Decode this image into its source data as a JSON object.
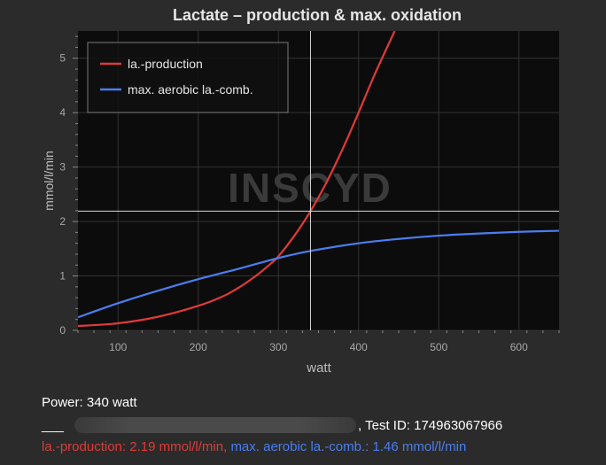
{
  "chart_data": {
    "type": "line",
    "title": "Lactate – production & max. oxidation",
    "xlabel": "watt",
    "ylabel": "mmol/l/min",
    "xlim": [
      50,
      650
    ],
    "ylim": [
      0,
      5.5
    ],
    "x_ticks": [
      100,
      200,
      300,
      400,
      500,
      600
    ],
    "y_ticks": [
      0,
      1,
      2,
      3,
      4,
      5
    ],
    "grid": true,
    "legend": "top-left",
    "watermark": "INSCYD",
    "crosshair": {
      "x": 340,
      "y": 2.19
    },
    "series": [
      {
        "name": "la.-production",
        "color": "#e03a3a",
        "x": [
          50,
          100,
          150,
          200,
          230,
          250,
          270,
          290,
          300,
          320,
          340,
          360,
          380,
          400,
          420,
          445
        ],
        "y": [
          0.08,
          0.13,
          0.25,
          0.45,
          0.62,
          0.78,
          0.98,
          1.22,
          1.36,
          1.74,
          2.19,
          2.72,
          3.33,
          4.0,
          4.7,
          5.5
        ]
      },
      {
        "name": "max. aerobic la.-comb.",
        "color": "#4a7ef0",
        "x": [
          50,
          100,
          150,
          200,
          250,
          300,
          340,
          400,
          450,
          500,
          550,
          600,
          650
        ],
        "y": [
          0.24,
          0.5,
          0.73,
          0.94,
          1.13,
          1.33,
          1.46,
          1.6,
          1.68,
          1.74,
          1.78,
          1.81,
          1.83
        ]
      }
    ]
  },
  "info": {
    "power": "Power: 340 watt",
    "redacted_prefix": "___",
    "test_id": ", Test ID: 174963067966",
    "readout_red": "la.-production: 2.19 mmol/l/min,",
    "readout_blue": "max. aerobic la.-comb.: 1.46 mmol/l/min"
  }
}
